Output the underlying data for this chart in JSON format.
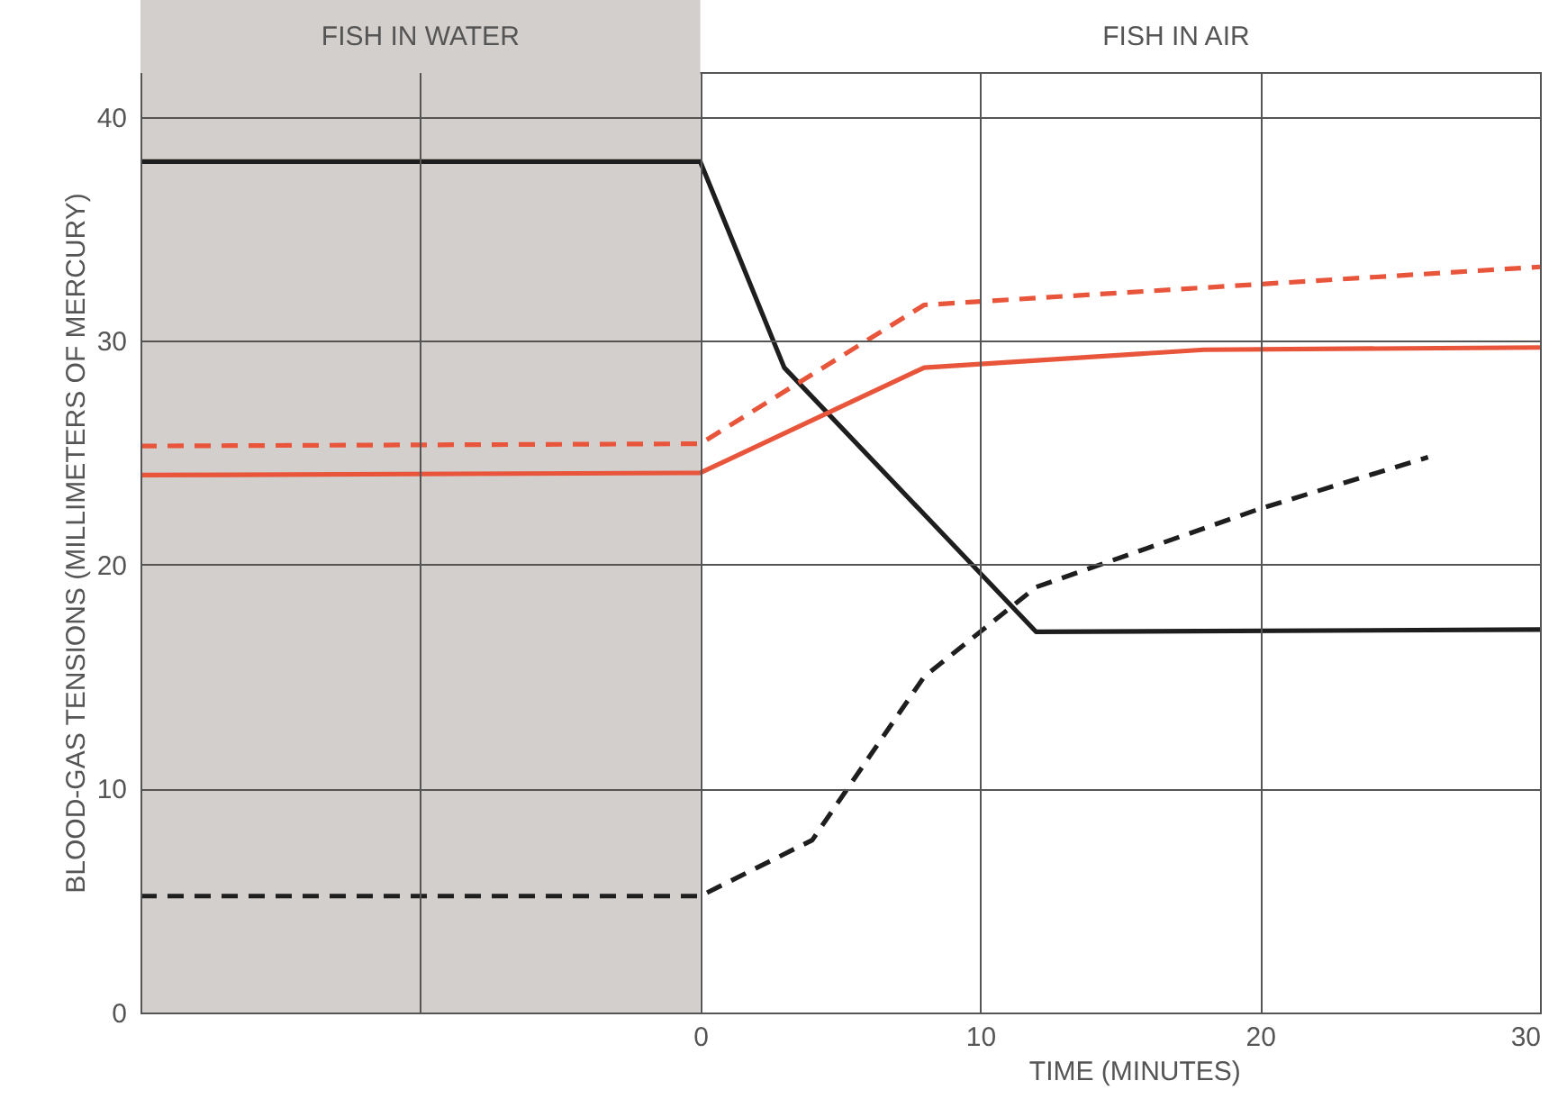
{
  "chart_data": {
    "type": "line",
    "xlabel": "TIME (MINUTES)",
    "ylabel": "BLOOD-GAS TENSIONS (MILLIMETERS OF MERCURY)",
    "series": [
      {
        "color": "#1e1e1e",
        "line_style": "solid",
        "x": [
          -20,
          0,
          3,
          12,
          30
        ],
        "values": [
          38,
          38,
          28.8,
          17,
          17.1
        ]
      },
      {
        "color": "#1e1e1e",
        "line_style": "dashed",
        "x": [
          -20,
          0,
          4,
          8,
          12,
          20,
          26
        ],
        "values": [
          5.2,
          5.2,
          7.7,
          15,
          19,
          22.5,
          24.8
        ]
      },
      {
        "color": "#e8553a",
        "line_style": "solid",
        "x": [
          -20,
          0,
          8,
          18,
          30
        ],
        "values": [
          24,
          24.1,
          28.8,
          29.6,
          29.7
        ]
      },
      {
        "color": "#e8553a",
        "line_style": "dashed",
        "x": [
          -20,
          0,
          8,
          30
        ],
        "values": [
          25.3,
          25.4,
          31.6,
          33.3
        ]
      }
    ],
    "bands": [
      {
        "axis": "x",
        "from": -20,
        "to": 0,
        "label": "FISH IN WATER",
        "color": "#d3cfcd"
      }
    ],
    "annotations": [
      "FISH IN AIR"
    ],
    "xlim": [
      -20,
      30
    ],
    "xticks": [
      {
        "value": -20,
        "label": null
      },
      {
        "value": -10,
        "label": null
      },
      0,
      10,
      20,
      30
    ],
    "ylim": [
      0,
      42
    ],
    "yticks": [
      0,
      10,
      20,
      30,
      40
    ],
    "grid": true,
    "marker": "none"
  }
}
